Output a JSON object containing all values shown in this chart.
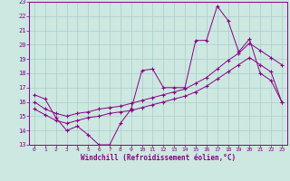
{
  "xlabel": "Windchill (Refroidissement éolien,°C)",
  "xlim": [
    -0.5,
    23.5
  ],
  "ylim": [
    13,
    23
  ],
  "xticks": [
    0,
    1,
    2,
    3,
    4,
    5,
    6,
    7,
    8,
    9,
    10,
    11,
    12,
    13,
    14,
    15,
    16,
    17,
    18,
    19,
    20,
    21,
    22,
    23
  ],
  "yticks": [
    13,
    14,
    15,
    16,
    17,
    18,
    19,
    20,
    21,
    22,
    23
  ],
  "background_color": "#cce8e0",
  "grid_color": "#aacccc",
  "line_color": "#880088",
  "line1_y": [
    16.5,
    16.2,
    14.9,
    14.0,
    14.3,
    13.7,
    13.0,
    13.0,
    14.5,
    15.5,
    18.2,
    18.3,
    17.0,
    17.0,
    17.0,
    20.3,
    20.3,
    22.7,
    21.7,
    19.5,
    20.4,
    18.0,
    17.5,
    16.0
  ],
  "line2_y": [
    16.0,
    15.5,
    15.2,
    15.0,
    15.2,
    15.3,
    15.5,
    15.6,
    15.7,
    15.9,
    16.1,
    16.3,
    16.5,
    16.7,
    16.9,
    17.3,
    17.7,
    18.3,
    18.9,
    19.4,
    20.1,
    19.6,
    19.1,
    18.6
  ],
  "line3_y": [
    15.5,
    15.1,
    14.7,
    14.5,
    14.7,
    14.9,
    15.0,
    15.2,
    15.3,
    15.4,
    15.6,
    15.8,
    16.0,
    16.2,
    16.4,
    16.7,
    17.1,
    17.6,
    18.1,
    18.6,
    19.1,
    18.6,
    18.1,
    16.0
  ]
}
